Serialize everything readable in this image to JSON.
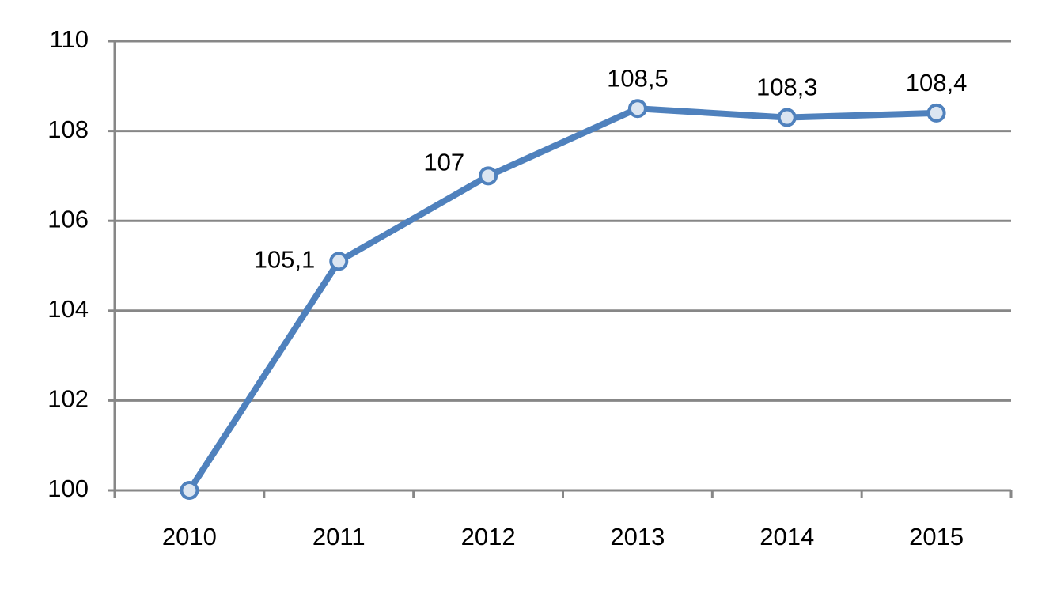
{
  "chart_data": {
    "type": "line",
    "categories": [
      "2010",
      "2011",
      "2012",
      "2013",
      "2014",
      "2015"
    ],
    "series": [
      {
        "color": "#4f81bd",
        "values": [
          100,
          105.1,
          107,
          108.5,
          108.3,
          108.4
        ],
        "value_labels": [
          null,
          "105,1",
          "107",
          "108,5",
          "108,3",
          "108,4"
        ]
      }
    ],
    "ylim": [
      100,
      110
    ],
    "yticks": [
      100,
      102,
      104,
      106,
      108,
      110
    ],
    "grid": true
  }
}
